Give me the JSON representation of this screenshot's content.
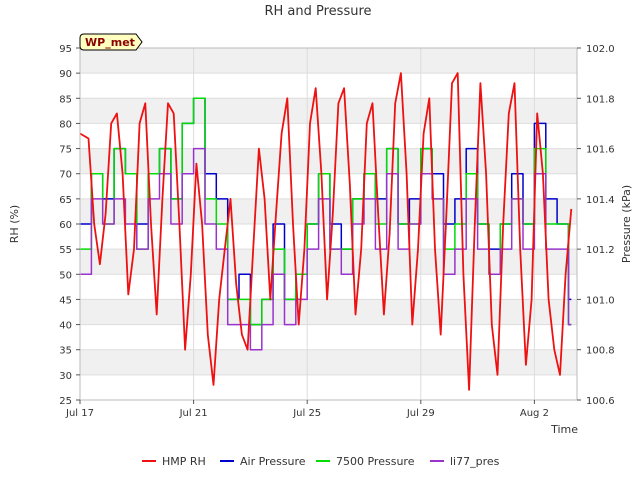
{
  "chart_data": {
    "type": "line",
    "title": "RH and Pressure",
    "xlabel": "Time",
    "ylabel": "RH (%)",
    "y2label": "Pressure (kPa)",
    "station_badge": "WP_met",
    "xlim": [
      0,
      17.5
    ],
    "x_tick_values": [
      0,
      4,
      8,
      12,
      16
    ],
    "x_tick_labels": [
      "Jul 17",
      "Jul 21",
      "Jul 25",
      "Jul 29",
      "Aug 2"
    ],
    "ylim": [
      25,
      95
    ],
    "y_ticks": [
      25,
      30,
      35,
      40,
      45,
      50,
      55,
      60,
      65,
      70,
      75,
      80,
      85,
      90,
      95
    ],
    "y2lim": [
      100.6,
      102.0
    ],
    "y2_ticks": [
      "100.6",
      "100.8",
      "101.0",
      "101.2",
      "101.4",
      "101.6",
      "101.8",
      "102.0"
    ],
    "y2_tick_values": [
      100.6,
      100.8,
      101.0,
      101.2,
      101.4,
      101.6,
      101.8,
      102.0
    ],
    "grid": true,
    "legend_placement": "bottom-center",
    "series": [
      {
        "name": "HMP RH",
        "color": "#ee1111",
        "x": [
          0.0,
          0.3,
          0.5,
          0.7,
          0.9,
          1.1,
          1.3,
          1.5,
          1.7,
          1.9,
          2.1,
          2.3,
          2.5,
          2.7,
          2.9,
          3.1,
          3.3,
          3.5,
          3.7,
          3.9,
          4.1,
          4.3,
          4.5,
          4.7,
          4.9,
          5.1,
          5.3,
          5.5,
          5.7,
          5.9,
          6.1,
          6.3,
          6.5,
          6.7,
          6.9,
          7.1,
          7.3,
          7.5,
          7.7,
          7.9,
          8.1,
          8.3,
          8.5,
          8.7,
          8.9,
          9.1,
          9.3,
          9.5,
          9.7,
          9.9,
          10.1,
          10.3,
          10.5,
          10.7,
          10.9,
          11.1,
          11.3,
          11.5,
          11.7,
          11.9,
          12.1,
          12.3,
          12.5,
          12.7,
          12.9,
          13.1,
          13.3,
          13.5,
          13.7,
          13.9,
          14.1,
          14.3,
          14.5,
          14.7,
          14.9,
          15.1,
          15.3,
          15.5,
          15.7,
          15.9,
          16.1,
          16.3,
          16.5,
          16.7,
          16.9,
          17.1,
          17.3
        ],
        "values": [
          78,
          77,
          60,
          52,
          62,
          80,
          82,
          70,
          46,
          55,
          80,
          84,
          60,
          42,
          65,
          84,
          82,
          60,
          35,
          50,
          72,
          60,
          38,
          28,
          45,
          55,
          65,
          48,
          38,
          35,
          55,
          75,
          65,
          45,
          62,
          78,
          85,
          60,
          40,
          55,
          80,
          87,
          70,
          45,
          62,
          84,
          87,
          68,
          42,
          55,
          80,
          84,
          62,
          42,
          58,
          84,
          90,
          70,
          40,
          55,
          78,
          85,
          55,
          38,
          62,
          88,
          90,
          50,
          27,
          60,
          88,
          70,
          40,
          30,
          60,
          82,
          88,
          55,
          32,
          45,
          82,
          70,
          45,
          35,
          30,
          50,
          63
        ]
      },
      {
        "name": "Air Pressure",
        "color": "#0000cc",
        "x": [
          0.0,
          0.4,
          0.8,
          1.2,
          1.6,
          2.0,
          2.4,
          2.8,
          3.2,
          3.6,
          4.0,
          4.4,
          4.8,
          5.2,
          5.6,
          6.0,
          6.4,
          6.8,
          7.2,
          7.6,
          8.0,
          8.4,
          8.8,
          9.2,
          9.6,
          10.0,
          10.4,
          10.8,
          11.2,
          11.6,
          12.0,
          12.4,
          12.8,
          13.2,
          13.6,
          14.0,
          14.4,
          14.8,
          15.2,
          15.6,
          16.0,
          16.4,
          16.8,
          17.2,
          17.3
        ],
        "values": [
          101.3,
          101.5,
          101.4,
          101.6,
          101.5,
          101.3,
          101.5,
          101.6,
          101.4,
          101.7,
          101.8,
          101.5,
          101.4,
          101.0,
          101.1,
          100.9,
          101.0,
          101.3,
          101.0,
          101.1,
          101.3,
          101.5,
          101.3,
          101.2,
          101.4,
          101.5,
          101.4,
          101.6,
          101.3,
          101.4,
          101.6,
          101.5,
          101.3,
          101.4,
          101.6,
          101.3,
          101.2,
          101.3,
          101.5,
          101.3,
          101.7,
          101.4,
          101.3,
          101.0,
          101.0
        ]
      },
      {
        "name": "7500 Pressure",
        "color": "#00dd00",
        "x": [
          0.0,
          0.4,
          0.8,
          1.2,
          1.6,
          2.0,
          2.4,
          2.8,
          3.2,
          3.6,
          4.0,
          4.4,
          4.8,
          5.2,
          5.6,
          6.0,
          6.4,
          6.8,
          7.2,
          7.6,
          8.0,
          8.4,
          8.8,
          9.2,
          9.6,
          10.0,
          10.4,
          10.8,
          11.2,
          11.6,
          12.0,
          12.4,
          12.8,
          13.2,
          13.6,
          14.0,
          14.4,
          14.8,
          15.2,
          15.6,
          16.0,
          16.4,
          16.8,
          17.2,
          17.3
        ],
        "values": [
          101.2,
          101.5,
          101.3,
          101.6,
          101.5,
          101.2,
          101.5,
          101.6,
          101.4,
          101.7,
          101.8,
          101.4,
          101.3,
          101.0,
          101.0,
          100.9,
          101.0,
          101.2,
          101.0,
          101.1,
          101.3,
          101.5,
          101.2,
          101.2,
          101.4,
          101.5,
          101.3,
          101.6,
          101.3,
          101.3,
          101.6,
          101.4,
          101.2,
          101.3,
          101.5,
          101.3,
          101.1,
          101.3,
          101.4,
          101.3,
          101.6,
          101.3,
          101.3,
          100.9,
          100.9
        ]
      },
      {
        "name": "li77_pres",
        "color": "#9933cc",
        "x": [
          0.0,
          0.4,
          0.8,
          1.2,
          1.6,
          2.0,
          2.4,
          2.8,
          3.2,
          3.6,
          4.0,
          4.4,
          4.8,
          5.2,
          5.6,
          6.0,
          6.4,
          6.8,
          7.2,
          7.6,
          8.0,
          8.4,
          8.8,
          9.2,
          9.6,
          10.0,
          10.4,
          10.8,
          11.2,
          11.6,
          12.0,
          12.4,
          12.8,
          13.2,
          13.6,
          14.0,
          14.4,
          14.8,
          15.2,
          15.6,
          16.0,
          16.4,
          16.8,
          17.2,
          17.3
        ],
        "values": [
          101.1,
          101.4,
          101.3,
          101.4,
          101.3,
          101.2,
          101.4,
          101.5,
          101.3,
          101.5,
          101.6,
          101.3,
          101.2,
          100.9,
          100.9,
          100.8,
          100.9,
          101.1,
          100.9,
          101.0,
          101.2,
          101.4,
          101.2,
          101.1,
          101.3,
          101.4,
          101.2,
          101.5,
          101.2,
          101.3,
          101.5,
          101.4,
          101.1,
          101.2,
          101.4,
          101.2,
          101.1,
          101.2,
          101.4,
          101.2,
          101.5,
          101.2,
          101.2,
          100.9,
          100.9
        ]
      }
    ]
  }
}
